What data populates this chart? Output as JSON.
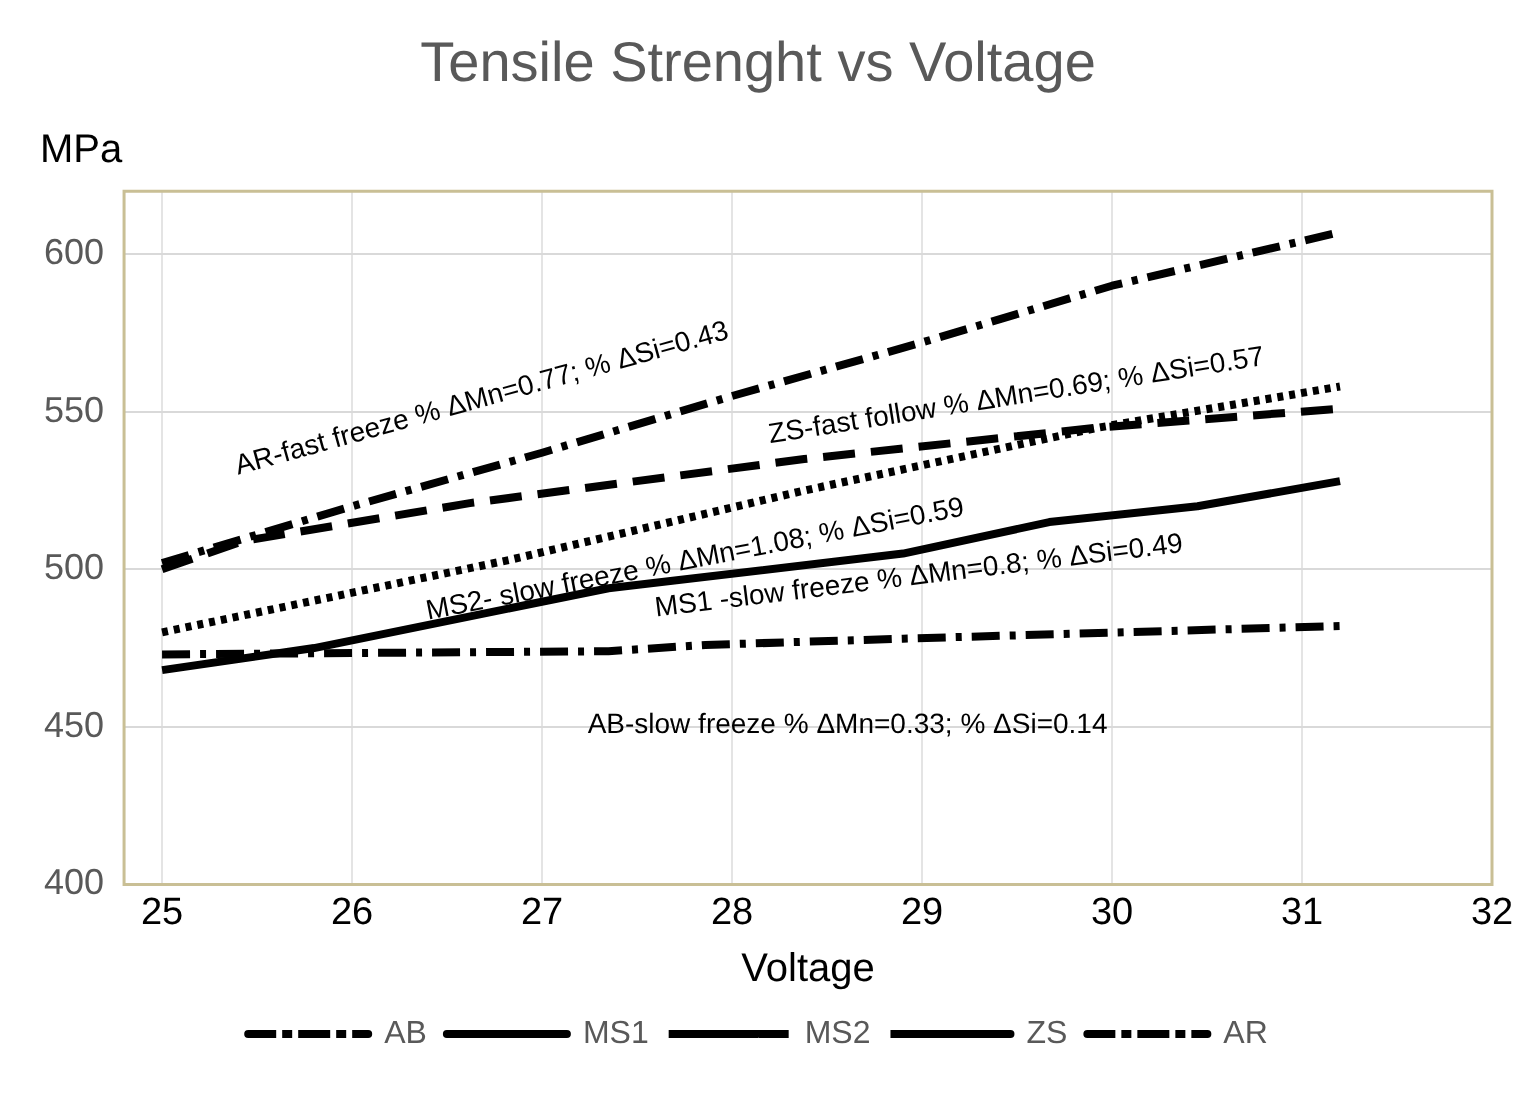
{
  "chart_data": {
    "type": "line",
    "title": "Tensile Strenght vs Voltage",
    "xlabel": "Voltage",
    "ylabel": "MPa",
    "xlim": [
      24.8,
      32
    ],
    "xticks": [
      25,
      26,
      27,
      28,
      29,
      30,
      31,
      32
    ],
    "ylim": [
      400,
      620
    ],
    "yticks": [
      400,
      450,
      500,
      550,
      600
    ],
    "grid": true,
    "legend": "bottom",
    "marker": "none",
    "series": [
      {
        "name": "AB",
        "color": "#000000",
        "line_style": "dashdot",
        "x": [
          25,
          27.35,
          27.86,
          28.9,
          31.2
        ],
        "values": [
          473,
          474,
          476,
          478,
          482
        ]
      },
      {
        "name": "MS1",
        "color": "#000000",
        "line_style": "solid",
        "x": [
          25,
          25.8,
          27.35,
          28.9,
          29.67,
          30.45,
          31.2
        ],
        "values": [
          468,
          475,
          494,
          505,
          515,
          520,
          528
        ]
      },
      {
        "name": "MS2",
        "color": "#000000",
        "line_style": "dotted",
        "x": [
          25,
          26.83,
          28.38,
          29.93,
          31.2
        ],
        "values": [
          480,
          503,
          525,
          545,
          558
        ]
      },
      {
        "name": "ZS",
        "color": "#000000",
        "line_style": "dashed",
        "x": [
          25,
          25.43,
          26.62,
          28.38,
          29.93,
          31.2
        ],
        "values": [
          500,
          509,
          521,
          535,
          545,
          551
        ]
      },
      {
        "name": "AR",
        "color": "#000000",
        "line_style": "dashdot",
        "x": [
          25,
          26,
          27,
          28,
          29,
          30,
          31.2
        ],
        "values": [
          502,
          520,
          537,
          555,
          572,
          590,
          607
        ]
      }
    ],
    "annotations": [
      "AR-fast freeze % ΔMn=0.77; % ΔSi=0.43",
      "ZS-fast follow % ΔMn=0.69; % ΔSi=0.57",
      "MS2- slow freeze % ΔMn=1.08; % ΔSi=0.59",
      "MS1 -slow freeze % ΔMn=0.8; % ΔSi=0.49",
      "AB-slow freeze % ΔMn=0.33; % ΔSi=0.14"
    ]
  }
}
